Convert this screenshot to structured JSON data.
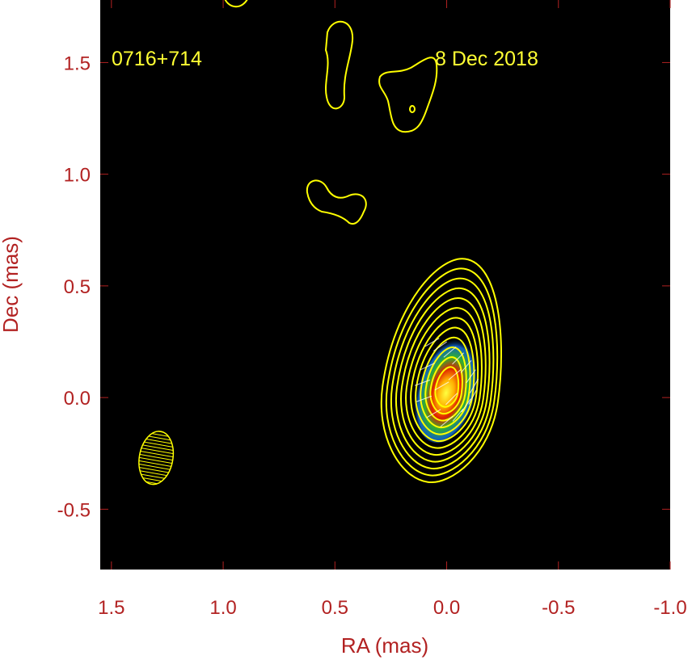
{
  "chart_data": {
    "type": "contour",
    "source": "0716+714",
    "date": "8 Dec 2018",
    "xlabel": "RA (mas)",
    "ylabel": "Dec (mas)",
    "xlim": [
      1.55,
      -1.0
    ],
    "ylim": [
      -0.77,
      1.78
    ],
    "xticks": [
      1.5,
      1.0,
      0.5,
      0.0,
      -0.5,
      -1.0
    ],
    "xtick_labels": [
      "1.5",
      "1.0",
      "0.5",
      "0.0",
      "-0.5",
      "-1.0"
    ],
    "yticks": [
      -0.5,
      0.0,
      0.5,
      1.0,
      1.5
    ],
    "ytick_labels": [
      "-0.5",
      "0.0",
      "0.5",
      "1.0",
      "1.5"
    ],
    "core": {
      "ra": 0.0,
      "dec": 0.03
    },
    "beam": {
      "ra": 1.3,
      "dec": -0.27,
      "width_mas": 0.15,
      "height_mas": 0.24
    },
    "colors": {
      "background": "#000000",
      "contour": "#ffff00",
      "axis_text": "#b22222",
      "annotation": "#ffff33"
    }
  }
}
